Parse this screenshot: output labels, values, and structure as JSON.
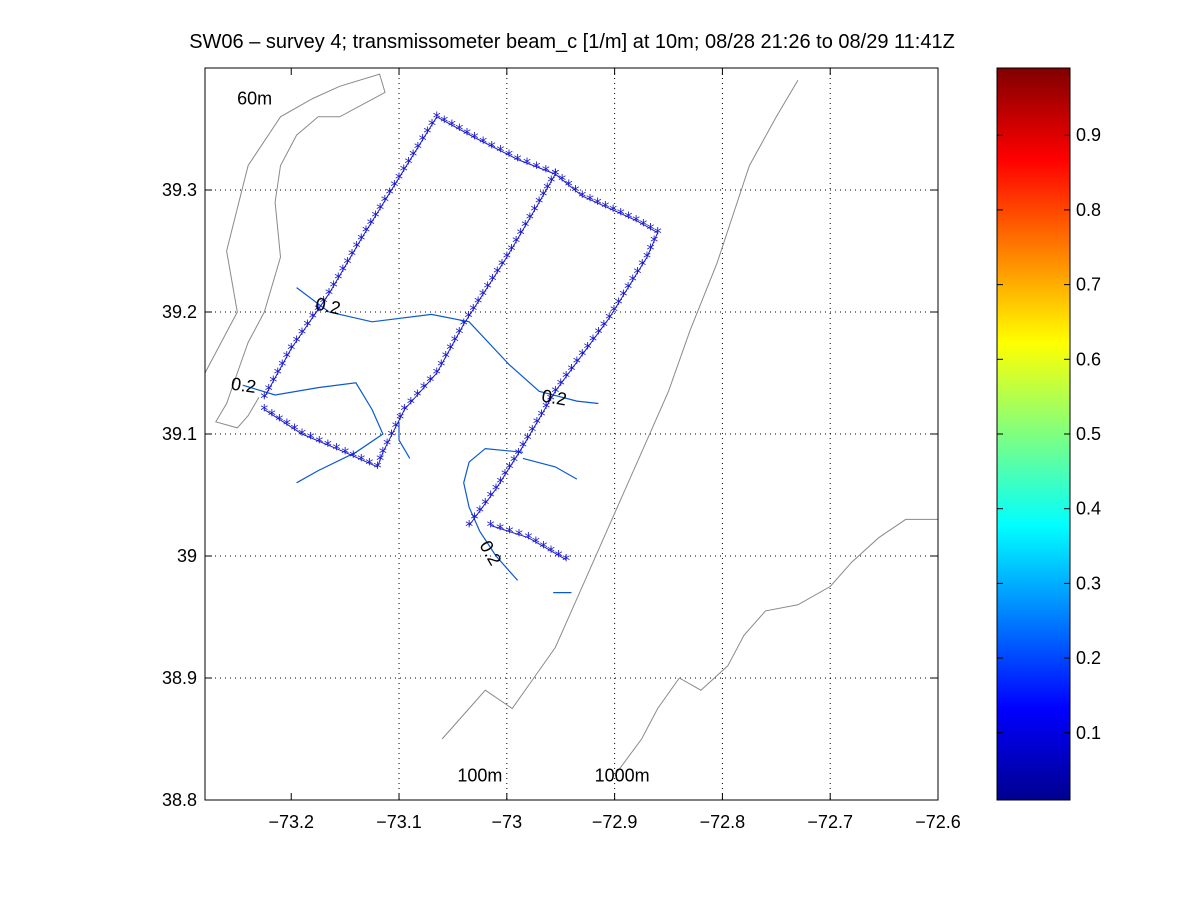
{
  "title": "SW06 – survey 4; transmissometer beam_c [1/m] at 10m; 08/28 21:26 to 08/29 11:41Z",
  "chart_data": {
    "type": "scatter",
    "title": "SW06 – survey 4; transmissometer beam_c [1/m] at 10m; 08/28 21:26 to 08/29 11:41Z",
    "xlim": [
      -73.28,
      -72.6
    ],
    "ylim": [
      38.8,
      39.4
    ],
    "xticks": [
      -73.2,
      -73.1,
      -73.0,
      -72.9,
      -72.8,
      -72.7,
      -72.6
    ],
    "xtick_labels": [
      "−73.2",
      "−73.1",
      "−73",
      "−72.9",
      "−72.8",
      "−72.7",
      "−72.6"
    ],
    "yticks": [
      38.8,
      38.9,
      39.0,
      39.1,
      39.2,
      39.3
    ],
    "ytick_labels": [
      "38.8",
      "38.9",
      "39",
      "39.1",
      "39.2",
      "39.3"
    ],
    "grid": true,
    "colorbar": {
      "colormap": "jet",
      "range": [
        0.01,
        0.99
      ],
      "ticks": [
        0.1,
        0.2,
        0.3,
        0.4,
        0.5,
        0.6,
        0.7,
        0.8,
        0.9
      ],
      "tick_labels": [
        "0.1",
        "0.2",
        "0.3",
        "0.4",
        "0.5",
        "0.6",
        "0.7",
        "0.8",
        "0.9"
      ],
      "position": "right"
    },
    "depth_labels": [
      {
        "text": "60m",
        "x": -73.234,
        "y": 39.37
      },
      {
        "text": "100m",
        "x": -73.025,
        "y": 38.815
      },
      {
        "text": "1000m",
        "x": -72.893,
        "y": 38.815
      }
    ],
    "contour_labels": [
      {
        "text": "0.2",
        "x": -73.167,
        "y": 39.2,
        "angle": 12
      },
      {
        "text": "0.2",
        "x": -73.245,
        "y": 39.135,
        "angle": 8
      },
      {
        "text": "0.2",
        "x": -72.957,
        "y": 39.125,
        "angle": 10
      },
      {
        "text": "0.2",
        "x": -73.02,
        "y": 39.0,
        "angle": 60
      }
    ],
    "marker": {
      "symbol": "*",
      "color": "#1a1acc"
    },
    "track_segments": [
      [
        [
          -73.225,
          39.13
        ],
        [
          -73.2,
          39.17
        ],
        [
          -73.165,
          39.215
        ],
        [
          -73.135,
          39.26
        ],
        [
          -73.1,
          39.31
        ],
        [
          -73.065,
          39.36
        ],
        [
          -73.03,
          39.343
        ],
        [
          -72.99,
          39.325
        ],
        [
          -72.955,
          39.313
        ],
        [
          -72.93,
          39.295
        ],
        [
          -72.88,
          39.275
        ],
        [
          -72.86,
          39.265
        ],
        [
          -72.87,
          39.245
        ],
        [
          -72.905,
          39.195
        ],
        [
          -72.955,
          39.135
        ],
        [
          -72.985,
          39.09
        ],
        [
          -73.01,
          39.055
        ],
        [
          -73.035,
          39.025
        ]
      ],
      [
        [
          -73.225,
          39.12
        ],
        [
          -73.19,
          39.1
        ],
        [
          -73.15,
          39.085
        ],
        [
          -73.12,
          39.073
        ],
        [
          -73.115,
          39.085
        ],
        [
          -73.095,
          39.12
        ],
        [
          -73.065,
          39.15
        ],
        [
          -73.04,
          39.19
        ],
        [
          -73.0,
          39.245
        ],
        [
          -72.97,
          39.29
        ],
        [
          -72.955,
          39.313
        ]
      ],
      [
        [
          -73.015,
          39.025
        ],
        [
          -72.98,
          39.015
        ],
        [
          -72.945,
          38.997
        ]
      ]
    ],
    "contours": [
      [
        [
          -73.195,
          39.22
        ],
        [
          -73.165,
          39.2
        ],
        [
          -73.125,
          39.192
        ],
        [
          -73.07,
          39.198
        ],
        [
          -73.035,
          39.192
        ],
        [
          -72.998,
          39.157
        ],
        [
          -72.97,
          39.135
        ],
        [
          -72.935,
          39.127
        ],
        [
          -72.915,
          39.125
        ]
      ],
      [
        [
          -73.245,
          39.14
        ],
        [
          -73.215,
          39.132
        ],
        [
          -73.175,
          39.138
        ],
        [
          -73.14,
          39.142
        ],
        [
          -73.125,
          39.12
        ],
        [
          -73.115,
          39.1
        ],
        [
          -73.14,
          39.085
        ],
        [
          -73.175,
          39.07
        ],
        [
          -73.195,
          39.06
        ]
      ],
      [
        [
          -73.1,
          39.11
        ],
        [
          -73.1,
          39.095
        ],
        [
          -73.09,
          39.08
        ]
      ],
      [
        [
          -72.985,
          39.08
        ],
        [
          -72.955,
          39.073
        ],
        [
          -72.935,
          39.063
        ]
      ],
      [
        [
          -72.985,
          39.085
        ],
        [
          -73.02,
          39.088
        ],
        [
          -73.035,
          39.077
        ],
        [
          -73.04,
          39.06
        ],
        [
          -73.035,
          39.04
        ],
        [
          -73.025,
          39.02
        ],
        [
          -73.01,
          39.0
        ],
        [
          -72.99,
          38.98
        ]
      ],
      [
        [
          -72.957,
          38.97
        ],
        [
          -72.94,
          38.97
        ]
      ]
    ],
    "coast_shelf": [
      [
        -73.28,
        39.15
      ],
      [
        -73.25,
        39.2
      ],
      [
        -73.26,
        39.25
      ],
      [
        -73.24,
        39.32
      ],
      [
        -73.21,
        39.36
      ],
      [
        -73.18,
        39.375
      ],
      [
        -73.155,
        39.385
      ],
      [
        -73.118,
        39.395
      ],
      [
        -73.113,
        39.38
      ],
      [
        -73.155,
        39.36
      ],
      [
        -73.175,
        39.36
      ],
      [
        -73.195,
        39.345
      ],
      [
        -73.21,
        39.32
      ],
      [
        -73.215,
        39.29
      ],
      [
        -73.21,
        39.245
      ],
      [
        -73.225,
        39.2
      ],
      [
        -73.24,
        39.175
      ],
      [
        -73.25,
        39.15
      ],
      [
        -73.26,
        39.125
      ],
      [
        -73.27,
        39.11
      ],
      [
        -73.25,
        39.105
      ],
      [
        -73.24,
        39.115
      ],
      [
        -73.23,
        39.13
      ]
    ],
    "coast_100m": [
      [
        -73.06,
        38.85
      ],
      [
        -73.035,
        38.875
      ],
      [
        -73.02,
        38.89
      ],
      [
        -72.995,
        38.875
      ],
      [
        -72.975,
        38.9
      ],
      [
        -72.955,
        38.925
      ],
      [
        -72.94,
        38.955
      ],
      [
        -72.925,
        38.985
      ],
      [
        -72.9,
        39.035
      ],
      [
        -72.875,
        39.085
      ],
      [
        -72.85,
        39.135
      ],
      [
        -72.83,
        39.185
      ],
      [
        -72.805,
        39.24
      ],
      [
        -72.79,
        39.28
      ],
      [
        -72.775,
        39.32
      ],
      [
        -72.75,
        39.36
      ],
      [
        -72.73,
        39.39
      ]
    ],
    "coast_1000m": [
      [
        -72.9,
        38.82
      ],
      [
        -72.875,
        38.85
      ],
      [
        -72.86,
        38.875
      ],
      [
        -72.84,
        38.9
      ],
      [
        -72.82,
        38.89
      ],
      [
        -72.795,
        38.91
      ],
      [
        -72.78,
        38.935
      ],
      [
        -72.76,
        38.955
      ],
      [
        -72.73,
        38.96
      ],
      [
        -72.7,
        38.975
      ],
      [
        -72.68,
        38.995
      ],
      [
        -72.655,
        39.015
      ],
      [
        -72.63,
        39.03
      ],
      [
        -72.6,
        39.03
      ]
    ]
  }
}
